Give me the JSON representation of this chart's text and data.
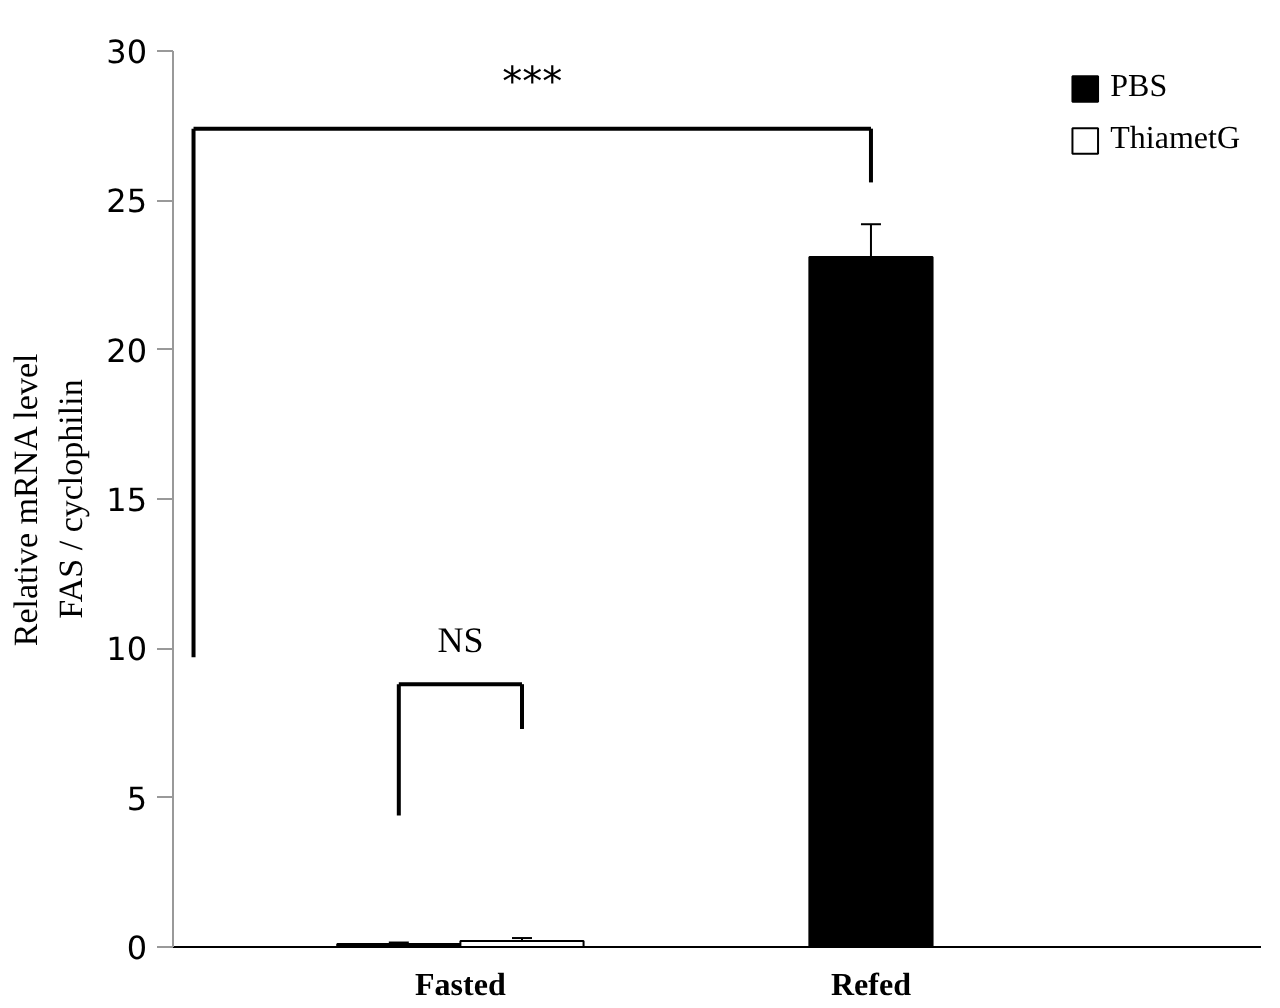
{
  "chart_data": {
    "type": "bar",
    "ylabel": "Relative mRNA level\nFAS / cyclophilin",
    "categories": [
      "Fasted",
      "Refed"
    ],
    "series": [
      {
        "name": "PBS",
        "color": "#000000",
        "values": [
          0.1,
          23.1
        ],
        "errors": [
          0.05,
          1.1
        ]
      },
      {
        "name": "ThiametG",
        "color": "#ffffff",
        "values": [
          0.2,
          null
        ],
        "errors": [
          0.1,
          null
        ]
      }
    ],
    "ylim": [
      0,
      30
    ],
    "yticks": [
      0,
      5,
      10,
      15,
      20,
      25,
      30
    ],
    "grid": false,
    "legend": "top right",
    "annotations": [
      "***",
      "NS"
    ]
  }
}
